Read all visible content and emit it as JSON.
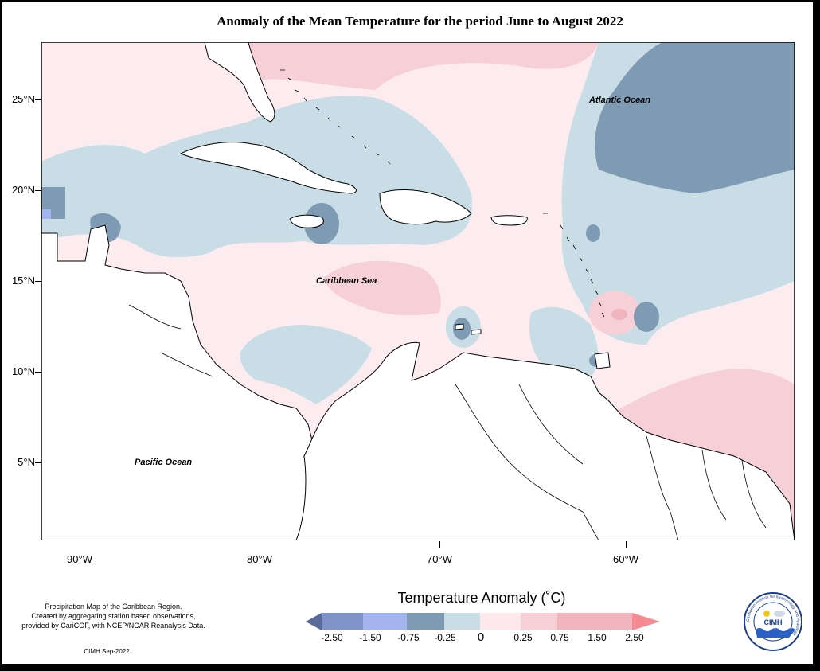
{
  "title": "Anomaly of the Mean Temperature for the period June to August 2022",
  "lat_labels": [
    "25°N",
    "20°N",
    "15°N",
    "10°N",
    "5°N"
  ],
  "lon_labels": [
    "90°W",
    "80°W",
    "70°W",
    "60°W"
  ],
  "place_labels": {
    "atlantic": "Atlantic Ocean",
    "caribbean": "Caribbean Sea",
    "pacific": "Pacific Ocean"
  },
  "credit": {
    "line1": "Precipitation Map of the Caribbean Region.",
    "line2": "Created by aggregating station based observations,",
    "line3": "provided by CariCOF, with NCEP/NCAR Reanalysis Data.",
    "date": "CIMH Sep-2022"
  },
  "legend": {
    "title": "Temperature Anomaly (˚C)",
    "labels": [
      "-2.50",
      "-1.50",
      "-0.75",
      "-0.25",
      "0",
      "0.25",
      "0.75",
      "1.50",
      "2.50"
    ],
    "colors": [
      "#5a6b9a",
      "#7f93c9",
      "#a4b4ee",
      "#7f9ab3",
      "#c8dde5",
      "#fde8eb",
      "#f7d0d7",
      "#f0b4bd",
      "#f58a92"
    ]
  },
  "logo": {
    "text": "CIMH",
    "ring_text": "Caribbean Institute for Meteorology and Hydrology"
  }
}
